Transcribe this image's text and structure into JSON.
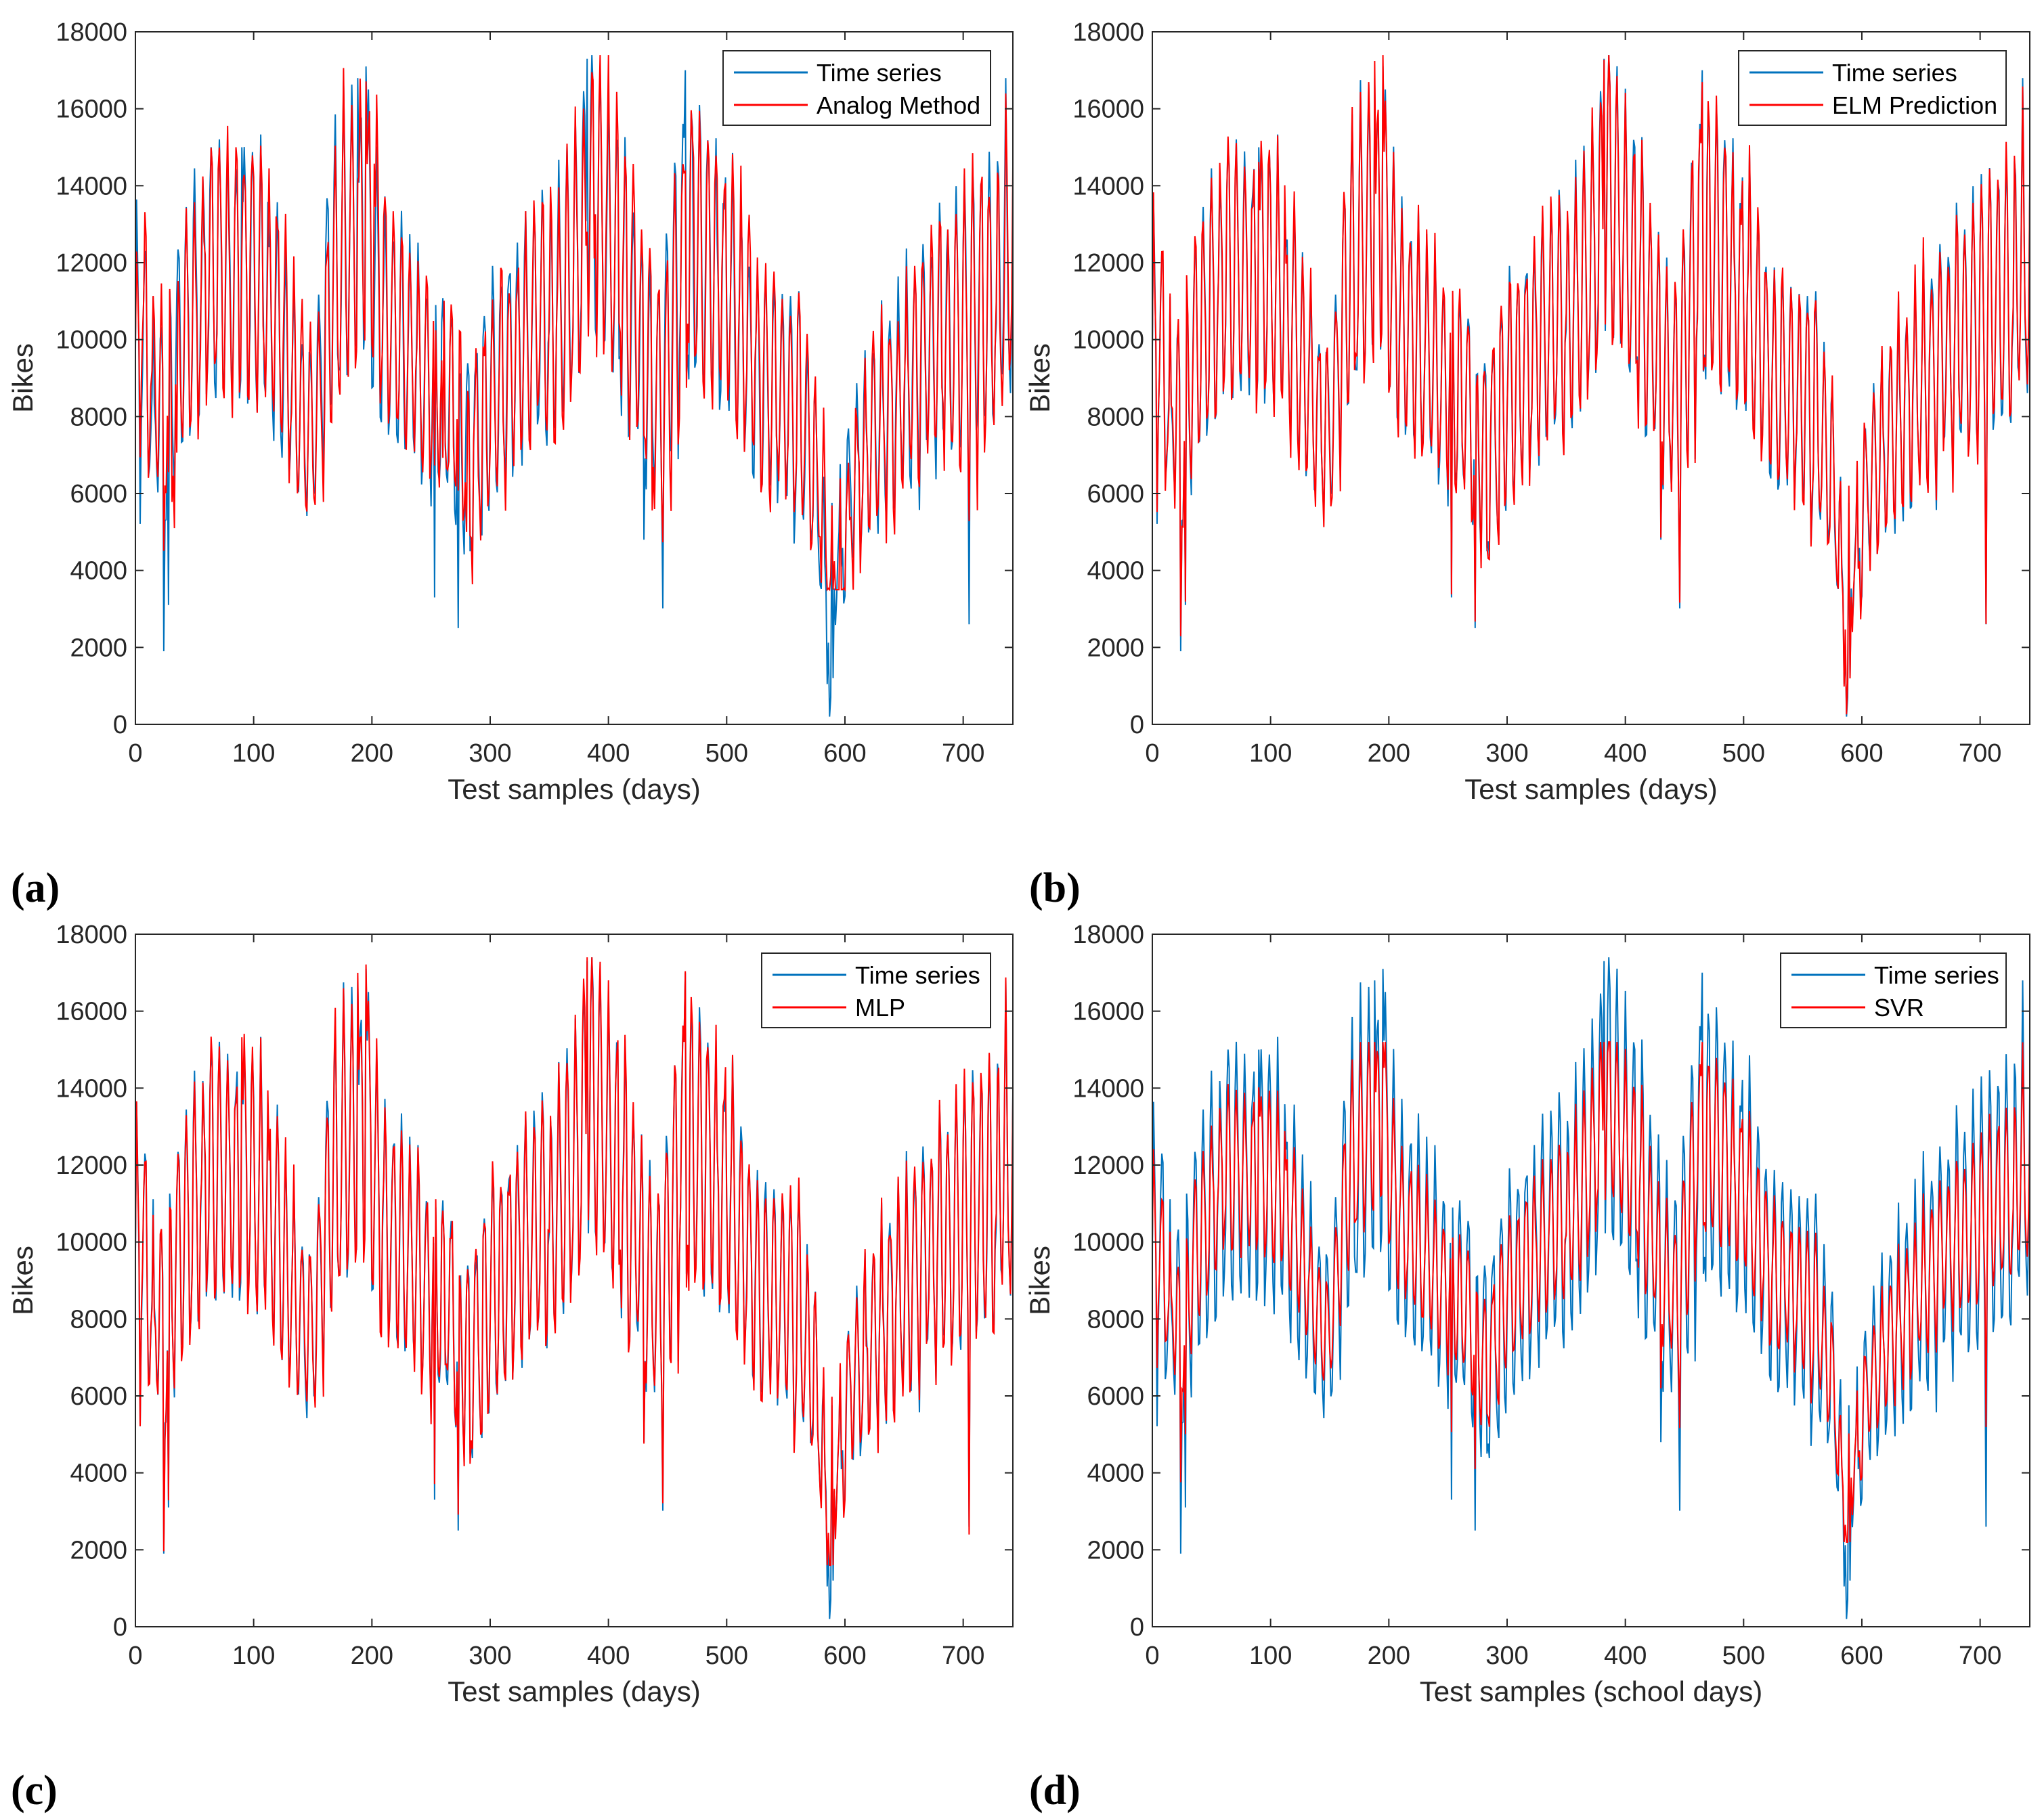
{
  "colors": {
    "time_series": "#0072BD",
    "prediction": "#FF0000",
    "axis": "#262626"
  },
  "chart_data": [
    {
      "panel": "(a)",
      "type": "line",
      "xlabel": "Test samples (days)",
      "ylabel": "Bikes",
      "xlim": [
        0,
        742
      ],
      "ylim": [
        0,
        18000
      ],
      "xticks": [
        0,
        100,
        200,
        300,
        400,
        500,
        600,
        700
      ],
      "yticks": [
        0,
        2000,
        4000,
        6000,
        8000,
        10000,
        12000,
        14000,
        16000,
        18000
      ],
      "legend": [
        "Time series",
        "Analog Method"
      ],
      "series": [
        {
          "name": "Time series",
          "color": "#0072BD",
          "min_point": [
            585,
            200
          ]
        },
        {
          "name": "Analog Method",
          "color": "#FF0000",
          "shape": "analog",
          "floor": 3500
        }
      ]
    },
    {
      "panel": "(b)",
      "type": "line",
      "xlabel": "Test samples (days)",
      "ylabel": "Bikes",
      "xlim": [
        0,
        742
      ],
      "ylim": [
        0,
        18000
      ],
      "xticks": [
        0,
        100,
        200,
        300,
        400,
        500,
        600,
        700
      ],
      "yticks": [
        0,
        2000,
        4000,
        6000,
        8000,
        10000,
        12000,
        14000,
        16000,
        18000
      ],
      "legend": [
        "Time series",
        "ELM Prediction"
      ],
      "series": [
        {
          "name": "Time series",
          "color": "#0072BD",
          "min_point": [
            585,
            200
          ]
        },
        {
          "name": "ELM Prediction",
          "color": "#FF0000",
          "shape": "close",
          "floor": 0
        }
      ]
    },
    {
      "panel": "(c)",
      "type": "line",
      "xlabel": "Test samples (days)",
      "ylabel": "Bikes",
      "xlim": [
        0,
        742
      ],
      "ylim": [
        0,
        18000
      ],
      "xticks": [
        0,
        100,
        200,
        300,
        400,
        500,
        600,
        700
      ],
      "yticks": [
        0,
        2000,
        4000,
        6000,
        8000,
        10000,
        12000,
        14000,
        16000,
        18000
      ],
      "legend": [
        "Time series",
        "MLP"
      ],
      "series": [
        {
          "name": "Time series",
          "color": "#0072BD",
          "min_point": [
            585,
            200
          ]
        },
        {
          "name": "MLP",
          "color": "#FF0000",
          "shape": "close",
          "floor": 1600
        }
      ]
    },
    {
      "panel": "(d)",
      "type": "line",
      "xlabel": "Test samples (school days)",
      "ylabel": "Bikes",
      "xlim": [
        0,
        742
      ],
      "ylim": [
        0,
        18000
      ],
      "xticks": [
        0,
        100,
        200,
        300,
        400,
        500,
        600,
        700
      ],
      "yticks": [
        0,
        2000,
        4000,
        6000,
        8000,
        10000,
        12000,
        14000,
        16000,
        18000
      ],
      "legend": [
        "Time series",
        "SVR"
      ],
      "series": [
        {
          "name": "Time series",
          "color": "#0072BD",
          "min_point": [
            585,
            200
          ]
        },
        {
          "name": "SVR",
          "color": "#FF0000",
          "shape": "smooth",
          "floor": 2200
        }
      ]
    }
  ]
}
